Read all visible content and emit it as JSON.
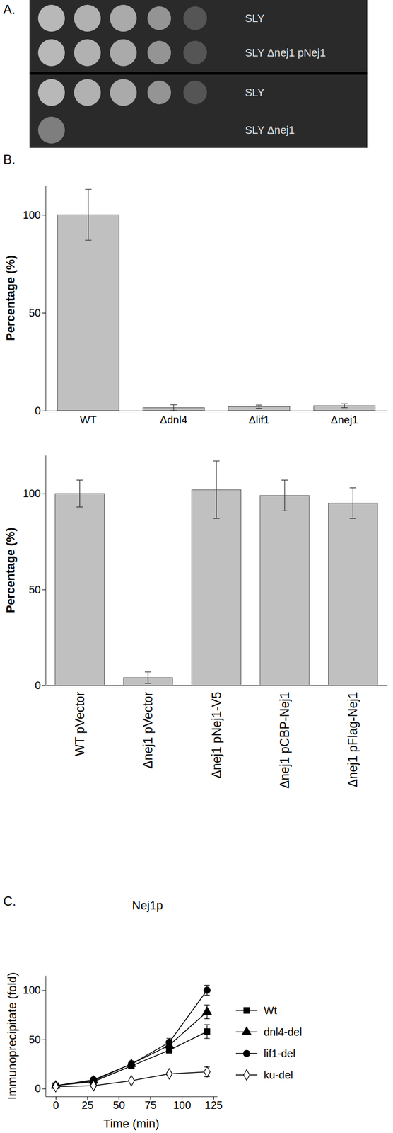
{
  "panel_labels": [
    "A.",
    "B.",
    "C."
  ],
  "spot_assay": {
    "rows": [
      {
        "label": "SLY",
        "spots": 5
      },
      {
        "label": "SLY Δnej1 pNej1",
        "spots": 5
      },
      {
        "label": "SLY",
        "spots": 5
      },
      {
        "label": "SLY Δnej1",
        "spots": 1
      }
    ]
  },
  "chart_data": [
    {
      "type": "bar",
      "y_label": "Percentage (%)",
      "categories": [
        "WT",
        "Δdnl4",
        "Δlif1",
        "Δnej1"
      ],
      "values": [
        100,
        1.5,
        2,
        2.5
      ],
      "errors": [
        13,
        1.5,
        0.8,
        1
      ],
      "color": "#c0c0c0",
      "ylim": [
        0,
        115
      ],
      "yticks": [
        0,
        50,
        100
      ]
    },
    {
      "type": "bar",
      "y_label": "Percentage (%)",
      "categories": [
        "WT pVector",
        "Δnej1 pVector",
        "Δnej1 pNej1-V5",
        "Δnej1 pCBP-Nej1",
        "Δnej1 pFlag-Nej1"
      ],
      "values": [
        100,
        4,
        102,
        99,
        95
      ],
      "errors": [
        7,
        3,
        15,
        8,
        8
      ],
      "color": "#c0c0c0",
      "ylim": [
        0,
        120
      ],
      "yticks": [
        0,
        50,
        100
      ]
    },
    {
      "type": "line",
      "title": "Nej1p",
      "x_label": "Time (min)",
      "y_label": "Immunoprecipitate (fold)",
      "x": [
        0,
        30,
        60,
        90,
        120
      ],
      "xlim": [
        -8,
        128
      ],
      "xticks": [
        0,
        25,
        50,
        75,
        100,
        125
      ],
      "ylim": [
        -8,
        115
      ],
      "yticks": [
        0,
        50,
        100
      ],
      "legend": "right",
      "series": [
        {
          "name": "Wt",
          "color": "#000000",
          "marker": "square",
          "values": [
            3,
            7,
            23,
            39,
            58
          ],
          "errors": [
            1,
            1,
            2,
            3,
            7
          ]
        },
        {
          "name": "dnl4-del",
          "color": "#000000",
          "marker": "triangle",
          "values": [
            3,
            8,
            25,
            44,
            78
          ],
          "errors": [
            1,
            1,
            3,
            3,
            7
          ]
        },
        {
          "name": "lif1-del",
          "color": "#000000",
          "marker": "circle",
          "values": [
            3,
            9,
            25,
            47,
            100
          ],
          "errors": [
            1,
            1,
            3,
            4,
            5
          ]
        },
        {
          "name": "ku-del",
          "color": "#000000",
          "marker": "diamond-open",
          "values": [
            2,
            3,
            8,
            15,
            17
          ],
          "errors": [
            0.5,
            0.5,
            1,
            1,
            5
          ]
        }
      ]
    }
  ]
}
